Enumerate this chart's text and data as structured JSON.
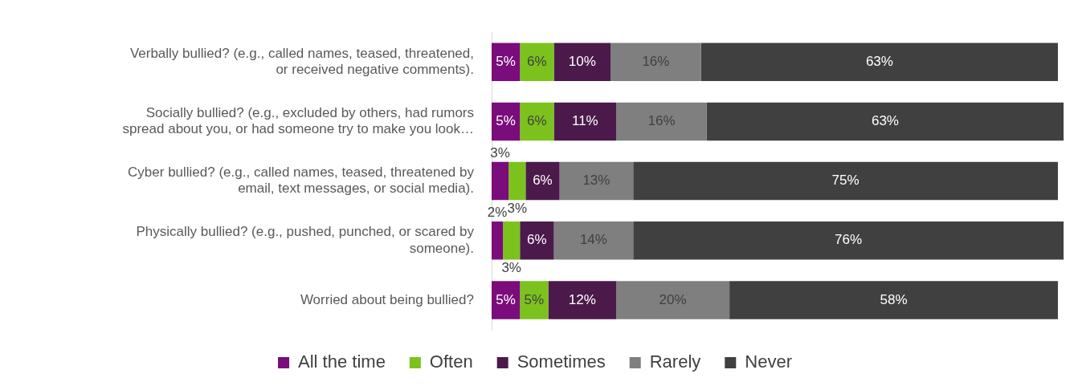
{
  "chart_data": {
    "type": "bar",
    "orientation": "horizontal",
    "stacked": true,
    "categories": [
      "Verbally bullied? (e.g., called names, teased, threatened, or received negative comments).",
      "Socially bullied? (e.g., excluded by others, had rumors spread about you, or had someone try to make you look…",
      "Cyber bullied? (e.g., called names, teased, threatened by email, text messages, or social media).",
      "Physically bullied? (e.g., pushed, punched, or scared by someone).",
      "Worried about being bullied?"
    ],
    "xlim": [
      0,
      101
    ],
    "tick_labels": "y",
    "grid": false,
    "legend": "bottom",
    "series": [
      {
        "name": "All the time",
        "color": "#7b0c7b",
        "values": [
          5,
          5,
          3,
          2,
          5
        ],
        "value_labels": [
          "5%",
          "5%",
          "3%",
          "2%",
          "5%"
        ]
      },
      {
        "name": "Often",
        "color": "#7cc21d",
        "values": [
          6,
          6,
          3,
          3,
          5
        ],
        "value_labels": [
          "6%",
          "6%",
          "3%",
          "3%",
          "5%"
        ]
      },
      {
        "name": "Sometimes",
        "color": "#4b1a4b",
        "values": [
          10,
          11,
          6,
          6,
          12
        ],
        "value_labels": [
          "10%",
          "11%",
          "6%",
          "6%",
          "12%"
        ]
      },
      {
        "name": "Rarely",
        "color": "#7f7f7f",
        "values": [
          16,
          16,
          13,
          14,
          20
        ],
        "value_labels": [
          "16%",
          "16%",
          "13%",
          "14%",
          "20%"
        ]
      },
      {
        "name": "Never",
        "color": "#404040",
        "values": [
          63,
          63,
          75,
          76,
          58
        ],
        "value_labels": [
          "63%",
          "63%",
          "75%",
          "76%",
          "58%"
        ]
      }
    ]
  }
}
